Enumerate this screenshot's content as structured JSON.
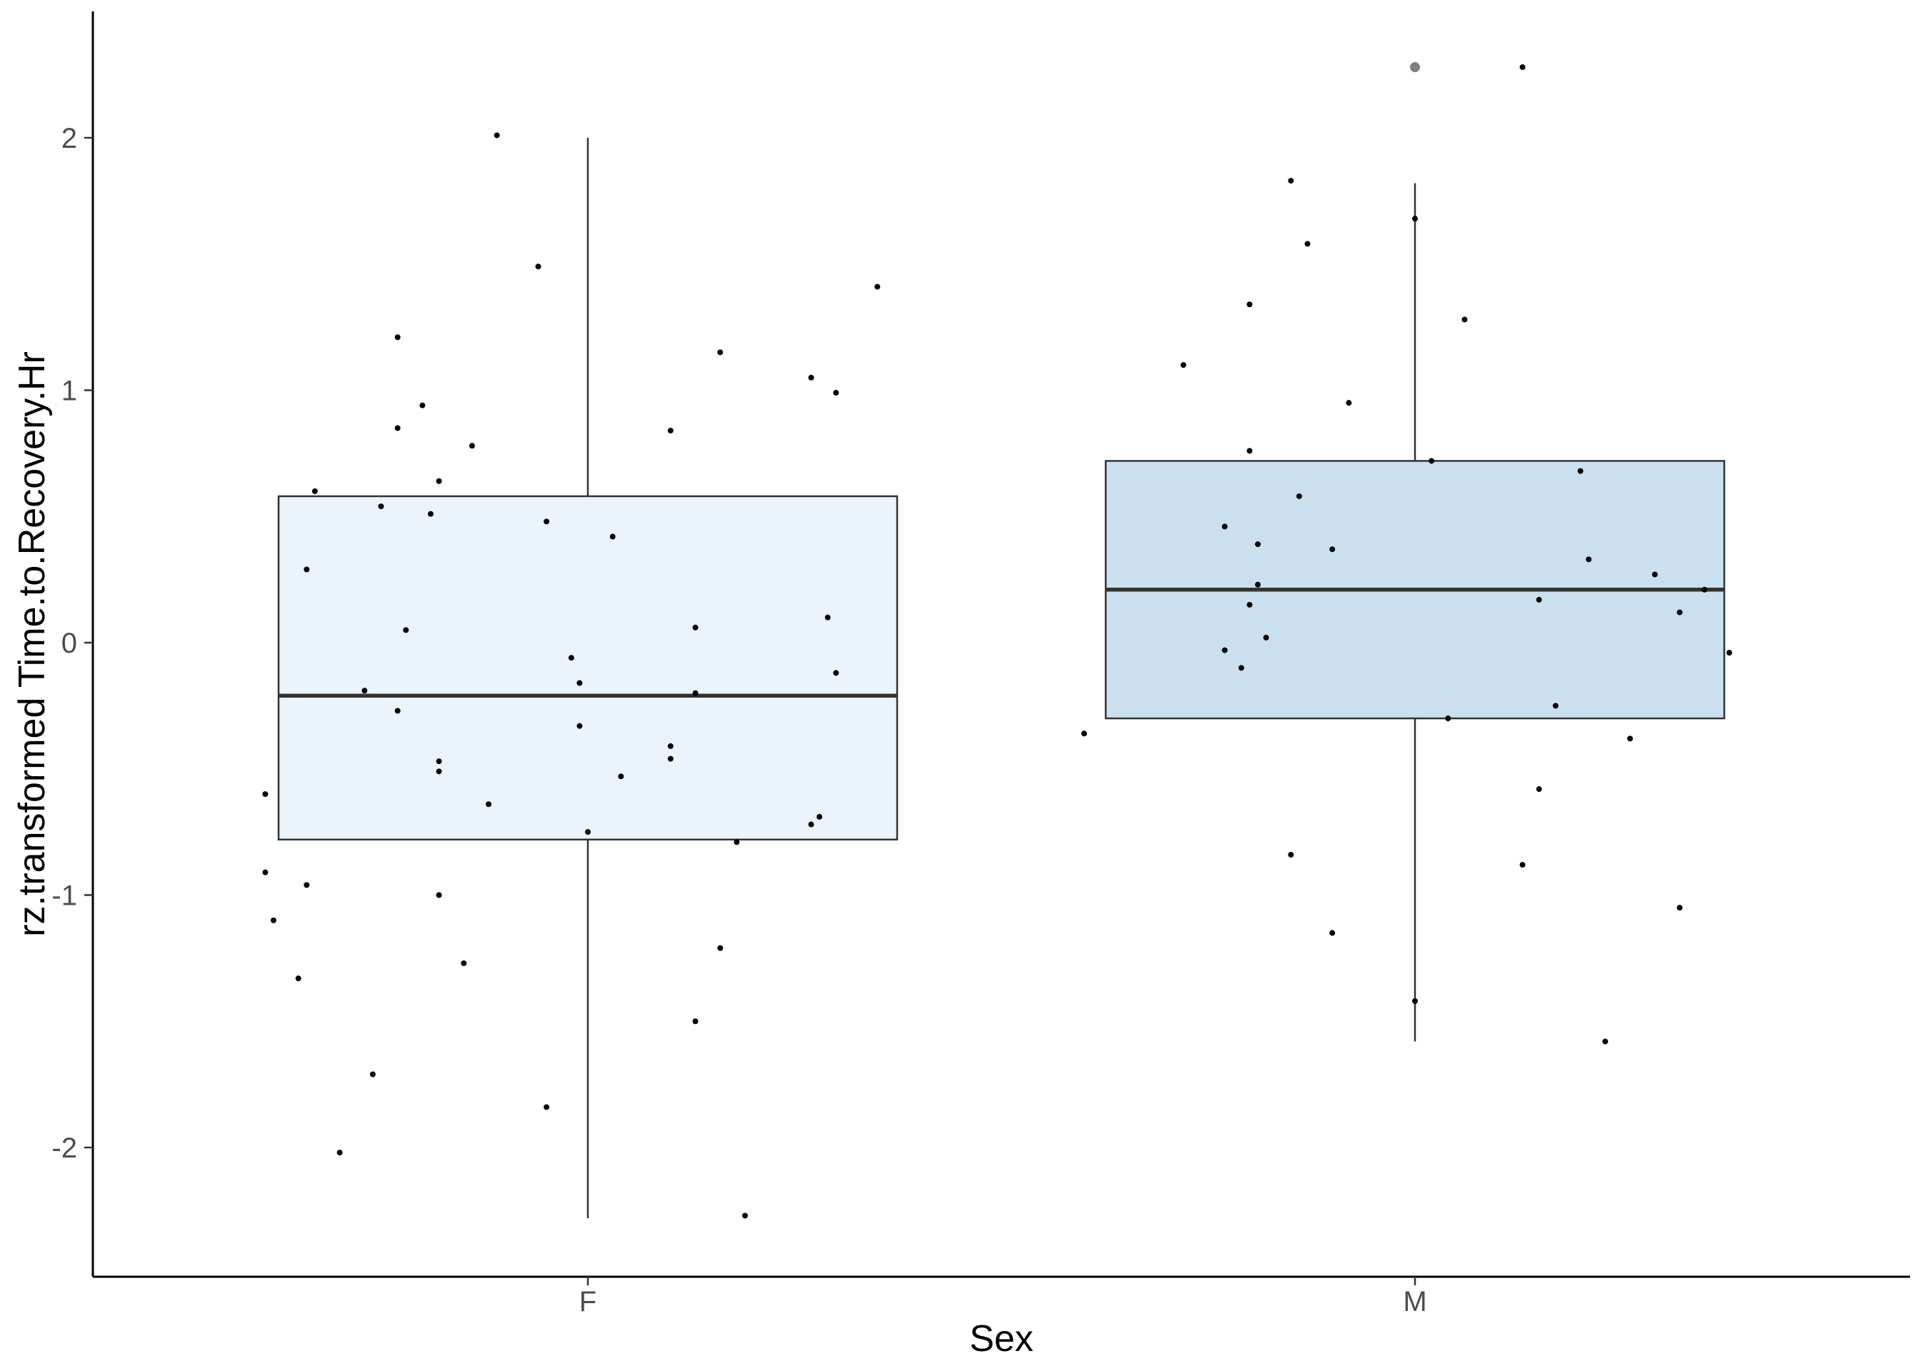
{
  "chart_data": {
    "type": "boxplot",
    "xlabel": "Sex",
    "ylabel": "rz.transformed Time.to.Recovery.Hr",
    "categories": [
      "F",
      "M"
    ],
    "ylim": [
      -2.5,
      2.5
    ],
    "yticks": [
      -2,
      -1,
      0,
      1,
      2
    ],
    "grid": false,
    "legend": "none",
    "colors": {
      "F": "#ebf3fb",
      "M": "#cae0ef",
      "stroke": "#333333",
      "point": "#000000",
      "outlier": "#7f7f7f"
    },
    "boxes": [
      {
        "category": "F",
        "q1": -0.78,
        "median": -0.21,
        "q3": 0.58,
        "whisker_low": -2.28,
        "whisker_high": 2.0,
        "outliers": []
      },
      {
        "category": "M",
        "q1": -0.3,
        "median": 0.21,
        "q3": 0.72,
        "whisker_low": -1.58,
        "whisker_high": 1.82,
        "outliers": [
          2.28
        ]
      }
    ],
    "points": [
      {
        "category": "F",
        "jitter": -0.39,
        "y": -0.6
      },
      {
        "category": "F",
        "jitter": -0.39,
        "y": -0.91
      },
      {
        "category": "F",
        "jitter": -0.38,
        "y": -1.1
      },
      {
        "category": "F",
        "jitter": -0.35,
        "y": -1.33
      },
      {
        "category": "F",
        "jitter": -0.34,
        "y": 0.29
      },
      {
        "category": "F",
        "jitter": -0.34,
        "y": -0.96
      },
      {
        "category": "F",
        "jitter": -0.33,
        "y": 0.6
      },
      {
        "category": "F",
        "jitter": -0.3,
        "y": -2.02
      },
      {
        "category": "F",
        "jitter": -0.27,
        "y": -0.19
      },
      {
        "category": "F",
        "jitter": -0.26,
        "y": -1.71
      },
      {
        "category": "F",
        "jitter": -0.25,
        "y": 0.54
      },
      {
        "category": "F",
        "jitter": -0.23,
        "y": 0.85
      },
      {
        "category": "F",
        "jitter": -0.23,
        "y": 1.21
      },
      {
        "category": "F",
        "jitter": -0.23,
        "y": -0.27
      },
      {
        "category": "F",
        "jitter": -0.22,
        "y": 0.05
      },
      {
        "category": "F",
        "jitter": -0.2,
        "y": 0.94
      },
      {
        "category": "F",
        "jitter": -0.19,
        "y": 0.51
      },
      {
        "category": "F",
        "jitter": -0.18,
        "y": 0.64
      },
      {
        "category": "F",
        "jitter": -0.18,
        "y": -0.47
      },
      {
        "category": "F",
        "jitter": -0.18,
        "y": -0.51
      },
      {
        "category": "F",
        "jitter": -0.18,
        "y": -1.0
      },
      {
        "category": "F",
        "jitter": -0.15,
        "y": -1.27
      },
      {
        "category": "F",
        "jitter": -0.14,
        "y": 0.78
      },
      {
        "category": "F",
        "jitter": -0.12,
        "y": -0.64
      },
      {
        "category": "F",
        "jitter": -0.11,
        "y": 2.01
      },
      {
        "category": "F",
        "jitter": -0.06,
        "y": 1.49
      },
      {
        "category": "F",
        "jitter": -0.05,
        "y": 0.48
      },
      {
        "category": "F",
        "jitter": -0.05,
        "y": -1.84
      },
      {
        "category": "F",
        "jitter": -0.02,
        "y": -0.06
      },
      {
        "category": "F",
        "jitter": -0.01,
        "y": -0.16
      },
      {
        "category": "F",
        "jitter": -0.01,
        "y": -0.33
      },
      {
        "category": "F",
        "jitter": 0.0,
        "y": -0.75
      },
      {
        "category": "F",
        "jitter": 0.03,
        "y": 0.42
      },
      {
        "category": "F",
        "jitter": 0.04,
        "y": -0.53
      },
      {
        "category": "F",
        "jitter": 0.1,
        "y": 0.84
      },
      {
        "category": "F",
        "jitter": 0.1,
        "y": -0.41
      },
      {
        "category": "F",
        "jitter": 0.1,
        "y": -0.46
      },
      {
        "category": "F",
        "jitter": 0.13,
        "y": -0.2
      },
      {
        "category": "F",
        "jitter": 0.13,
        "y": 0.06
      },
      {
        "category": "F",
        "jitter": 0.13,
        "y": -1.5
      },
      {
        "category": "F",
        "jitter": 0.16,
        "y": 1.15
      },
      {
        "category": "F",
        "jitter": 0.16,
        "y": -1.21
      },
      {
        "category": "F",
        "jitter": 0.18,
        "y": -0.79
      },
      {
        "category": "F",
        "jitter": 0.19,
        "y": -2.27
      },
      {
        "category": "F",
        "jitter": 0.27,
        "y": 1.05
      },
      {
        "category": "F",
        "jitter": 0.27,
        "y": -0.72
      },
      {
        "category": "F",
        "jitter": 0.28,
        "y": -0.69
      },
      {
        "category": "F",
        "jitter": 0.29,
        "y": 0.1
      },
      {
        "category": "F",
        "jitter": 0.3,
        "y": 0.99
      },
      {
        "category": "F",
        "jitter": 0.3,
        "y": -0.12
      },
      {
        "category": "F",
        "jitter": 0.35,
        "y": 1.41
      },
      {
        "category": "M",
        "jitter": -0.4,
        "y": -0.36
      },
      {
        "category": "M",
        "jitter": -0.28,
        "y": 1.1
      },
      {
        "category": "M",
        "jitter": -0.23,
        "y": -0.03
      },
      {
        "category": "M",
        "jitter": -0.23,
        "y": 0.46
      },
      {
        "category": "M",
        "jitter": -0.21,
        "y": -0.1
      },
      {
        "category": "M",
        "jitter": -0.2,
        "y": 1.34
      },
      {
        "category": "M",
        "jitter": -0.2,
        "y": 0.76
      },
      {
        "category": "M",
        "jitter": -0.2,
        "y": 0.15
      },
      {
        "category": "M",
        "jitter": -0.19,
        "y": 0.23
      },
      {
        "category": "M",
        "jitter": -0.19,
        "y": 0.39
      },
      {
        "category": "M",
        "jitter": -0.18,
        "y": 0.02
      },
      {
        "category": "M",
        "jitter": -0.15,
        "y": 1.83
      },
      {
        "category": "M",
        "jitter": -0.15,
        "y": -0.84
      },
      {
        "category": "M",
        "jitter": -0.14,
        "y": 0.58
      },
      {
        "category": "M",
        "jitter": -0.13,
        "y": 1.58
      },
      {
        "category": "M",
        "jitter": -0.1,
        "y": 0.37
      },
      {
        "category": "M",
        "jitter": -0.1,
        "y": -1.15
      },
      {
        "category": "M",
        "jitter": -0.08,
        "y": 0.95
      },
      {
        "category": "M",
        "jitter": 0.0,
        "y": 1.68
      },
      {
        "category": "M",
        "jitter": 0.0,
        "y": -1.42
      },
      {
        "category": "M",
        "jitter": 0.02,
        "y": 0.72
      },
      {
        "category": "M",
        "jitter": 0.04,
        "y": -0.3
      },
      {
        "category": "M",
        "jitter": 0.06,
        "y": 1.28
      },
      {
        "category": "M",
        "jitter": 0.13,
        "y": 2.28
      },
      {
        "category": "M",
        "jitter": 0.13,
        "y": -0.88
      },
      {
        "category": "M",
        "jitter": 0.15,
        "y": 0.17
      },
      {
        "category": "M",
        "jitter": 0.15,
        "y": -0.58
      },
      {
        "category": "M",
        "jitter": 0.17,
        "y": -0.25
      },
      {
        "category": "M",
        "jitter": 0.2,
        "y": 0.68
      },
      {
        "category": "M",
        "jitter": 0.21,
        "y": 0.33
      },
      {
        "category": "M",
        "jitter": 0.23,
        "y": -1.58
      },
      {
        "category": "M",
        "jitter": 0.26,
        "y": -0.38
      },
      {
        "category": "M",
        "jitter": 0.29,
        "y": 0.27
      },
      {
        "category": "M",
        "jitter": 0.32,
        "y": 0.12
      },
      {
        "category": "M",
        "jitter": 0.32,
        "y": -1.05
      },
      {
        "category": "M",
        "jitter": 0.35,
        "y": 0.21
      },
      {
        "category": "M",
        "jitter": 0.38,
        "y": -0.04
      }
    ]
  }
}
